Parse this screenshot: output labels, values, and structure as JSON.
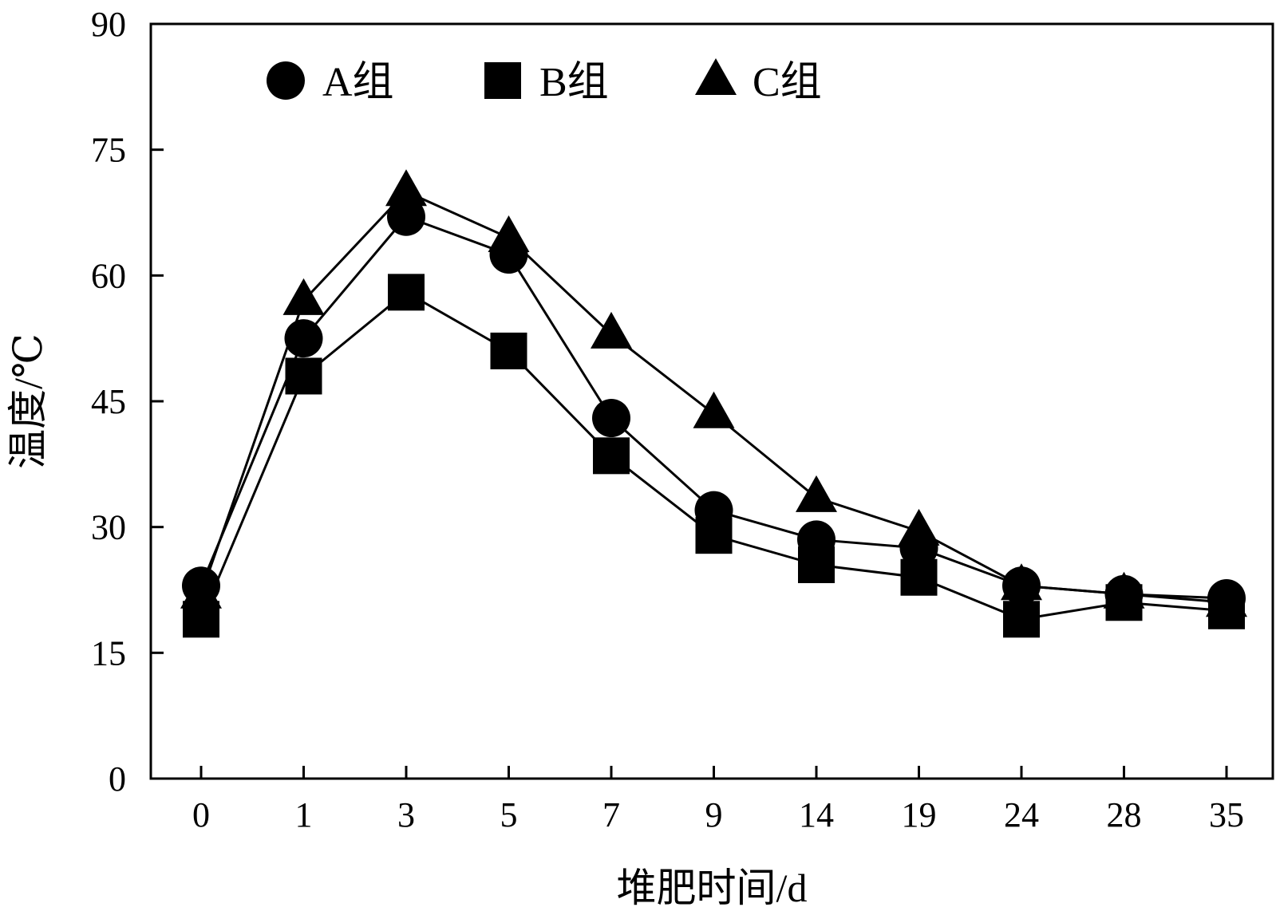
{
  "chart_data": {
    "type": "line",
    "xlabel": "堆肥时间/d",
    "ylabel": "温度/℃",
    "x": [
      "0",
      "1",
      "3",
      "5",
      "7",
      "9",
      "14",
      "19",
      "24",
      "28",
      "35"
    ],
    "ylim": [
      0,
      90
    ],
    "yticks": [
      "0",
      "15",
      "30",
      "45",
      "60",
      "75",
      "90"
    ],
    "grid": false,
    "legend_position": "top-left",
    "series": [
      {
        "name": "A组",
        "marker": "circle",
        "values": [
          23,
          52.5,
          67,
          62.5,
          43,
          32,
          28.5,
          27.5,
          23,
          22,
          21.5
        ]
      },
      {
        "name": "B组",
        "marker": "square",
        "values": [
          19,
          48,
          58,
          51,
          38.5,
          29,
          25.5,
          24,
          19,
          21,
          20
        ]
      },
      {
        "name": "C组",
        "marker": "triangle",
        "values": [
          22,
          57,
          70,
          64.5,
          53,
          43.5,
          33.5,
          29.5,
          23,
          22,
          21
        ]
      }
    ]
  },
  "colors": {
    "ink": "#000000",
    "background": "#ffffff"
  }
}
